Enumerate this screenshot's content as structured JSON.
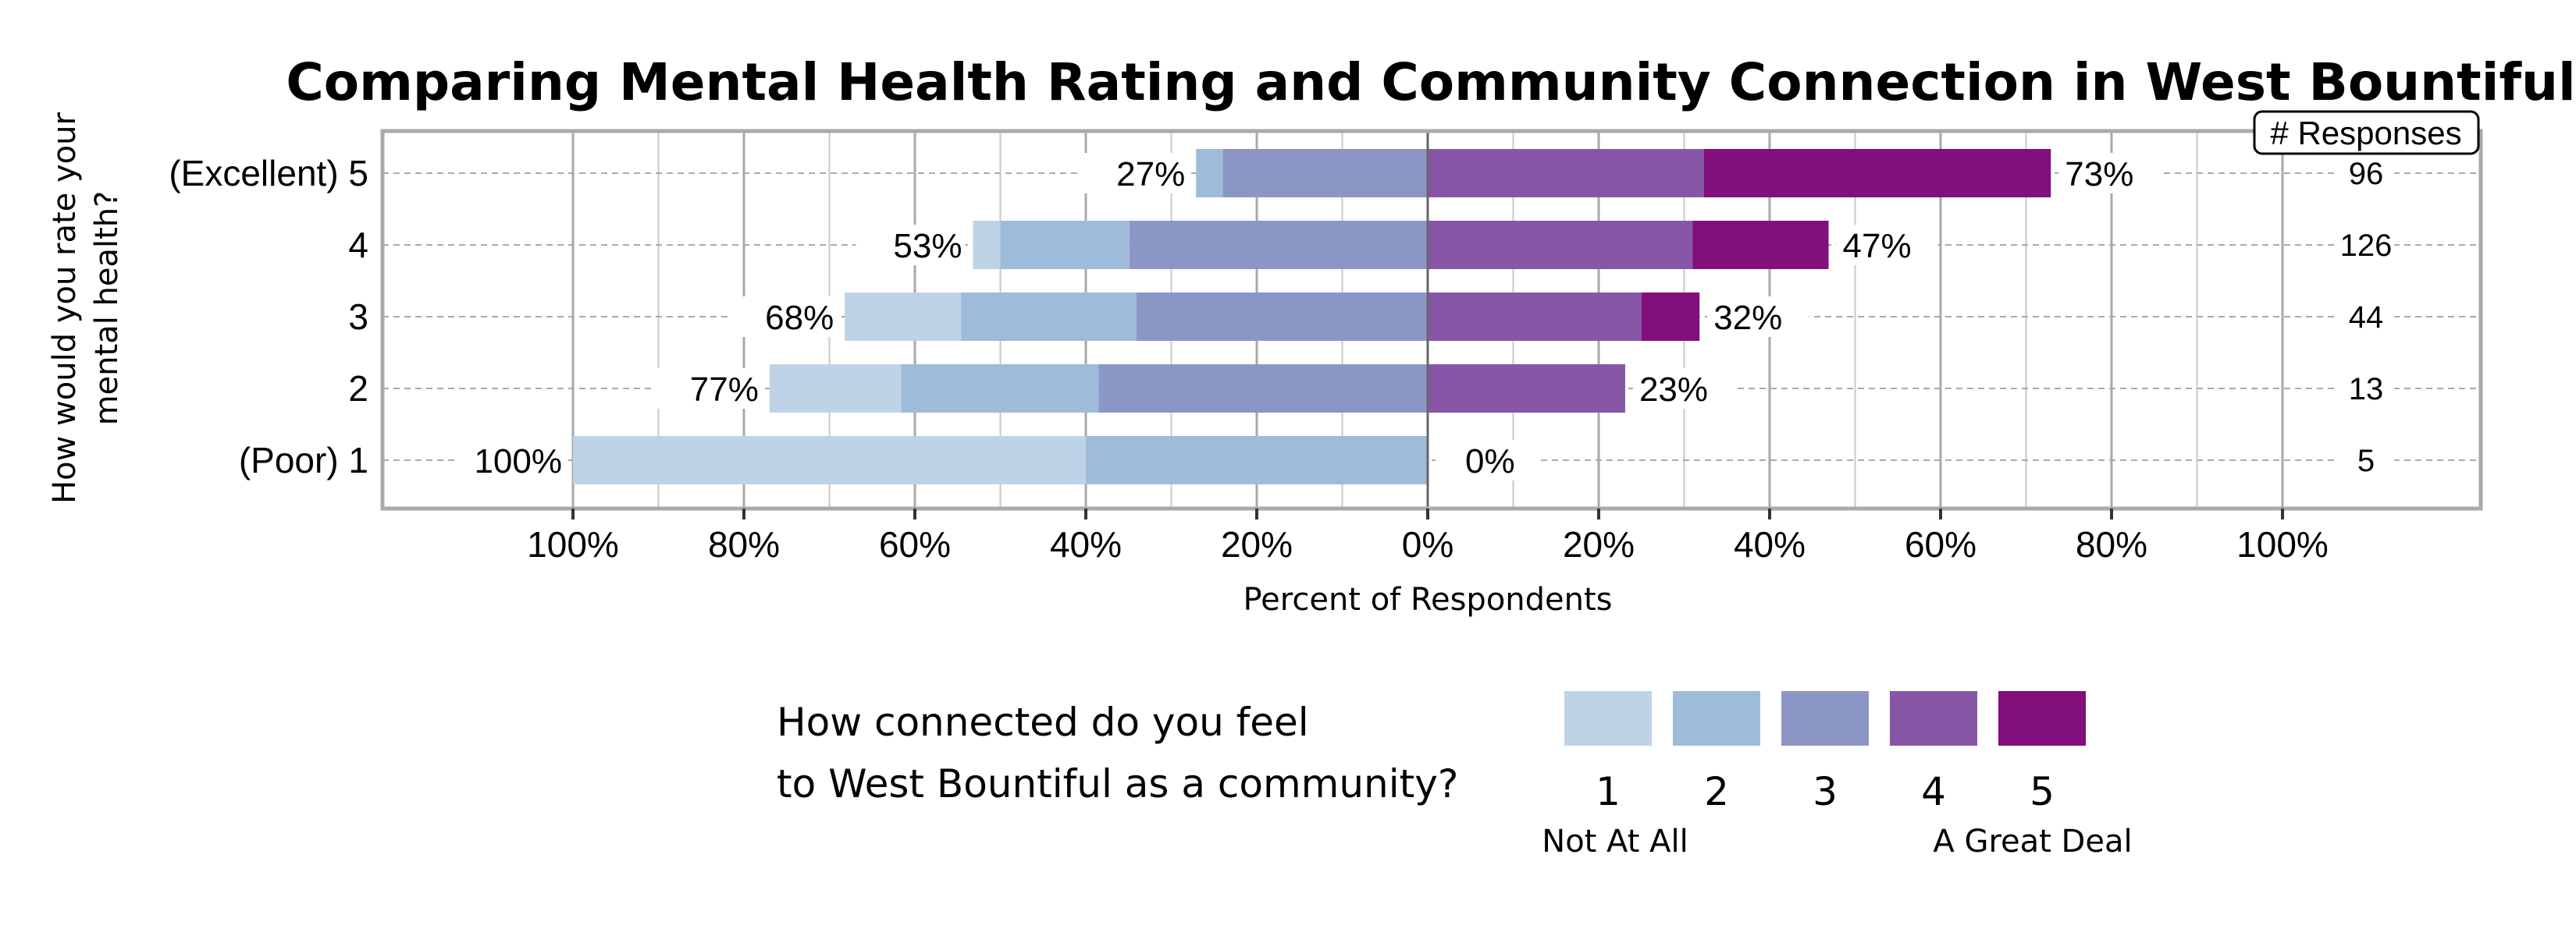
{
  "chart_data": {
    "type": "bar",
    "orientation": "horizontal",
    "stacked": "diverging",
    "title": "Comparing Mental Health Rating and Community Connection in West Bountiful",
    "ylabel_lines": [
      "How would you rate your",
      "mental health?"
    ],
    "xlabel": "Percent of Respondents",
    "xlim": [
      -100,
      100
    ],
    "x_tick_values": [
      -100,
      -80,
      -60,
      -40,
      -20,
      0,
      20,
      40,
      60,
      80,
      100
    ],
    "x_tick_labels": [
      "100%",
      "80%",
      "60%",
      "40%",
      "20%",
      "0%",
      "20%",
      "40%",
      "60%",
      "80%",
      "100%"
    ],
    "grid": true,
    "categories": [
      "(Excellent) 5",
      "4",
      "3",
      "2",
      "(Poor) 1"
    ],
    "series": [
      {
        "name": "1",
        "color": "#bfd3e6",
        "values": [
          0,
          3.2,
          13.6,
          15.4,
          60.0
        ]
      },
      {
        "name": "2",
        "color": "#9ebbd9",
        "values": [
          3.1,
          15.1,
          20.5,
          23.1,
          40.0
        ]
      },
      {
        "name": "3",
        "color": "#8c96c6",
        "values": [
          24.0,
          34.9,
          34.1,
          38.5,
          0
        ]
      },
      {
        "name": "4",
        "color": "#8856a7",
        "values": [
          32.3,
          31.0,
          25.0,
          23.1,
          0
        ]
      },
      {
        "name": "5",
        "color": "#810f7c",
        "values": [
          40.6,
          15.9,
          6.8,
          0,
          0
        ]
      }
    ],
    "negative_labels": [
      "27%",
      "53%",
      "68%",
      "77%",
      "100%"
    ],
    "positive_labels": [
      "73%",
      "47%",
      "32%",
      "23%",
      "0%"
    ],
    "responses_header": "# Responses",
    "responses": [
      "96",
      "126",
      "44",
      "13",
      "5"
    ],
    "legend": {
      "title_lines": [
        "How connected do you feel",
        "to West Bountiful as a community?"
      ],
      "low_label": "Not At All",
      "high_label": "A Great Deal",
      "placement": "bottom"
    }
  }
}
